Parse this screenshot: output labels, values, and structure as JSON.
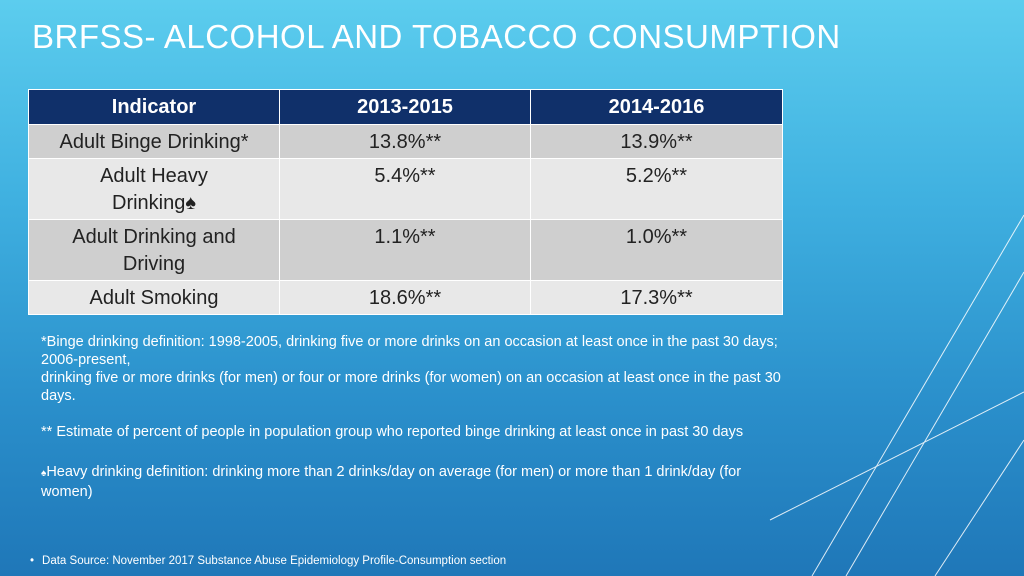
{
  "title": "BRFSS- ALCOHOL AND TOBACCO CONSUMPTION",
  "table": {
    "headers": [
      "Indicator",
      "2013-2015",
      "2014-2016"
    ],
    "rows": [
      {
        "indicator": "Adult Binge Drinking*",
        "v2013_2015": "13.8%**",
        "v2014_2016": "13.9%**"
      },
      {
        "indicator": "Adult Heavy Drinking♠",
        "v2013_2015": "5.4%**",
        "v2014_2016": "5.2%**"
      },
      {
        "indicator": "Adult Drinking and Driving",
        "v2013_2015": "1.1%**",
        "v2014_2016": "1.0%**"
      },
      {
        "indicator": "Adult Smoking",
        "v2013_2015": "18.6%**",
        "v2014_2016": "17.3%**"
      }
    ]
  },
  "notes": {
    "binge_line1": "*Binge drinking definition: 1998-2005, drinking five or more drinks on an occasion at least once in the past 30 days; 2006-present,",
    "binge_line2": "drinking five or more drinks (for men) or four or more drinks (for women) on an occasion at least once in the past 30 days.",
    "estimate": "** Estimate of percent of people in population group who reported binge drinking at least once in past 30 days",
    "heavy_symbol": "♠",
    "heavy": "Heavy drinking definition: drinking more than 2 drinks/day on average (for men) or more than 1 drink/day (for women)"
  },
  "source": {
    "bullet": "•",
    "text": "Data Source: November 2017 Substance Abuse Epidemiology Profile-Consumption section"
  },
  "colors": {
    "header_bg": "#10306a",
    "row_dark": "#cfcfcf",
    "row_light": "#e8e8e8"
  }
}
